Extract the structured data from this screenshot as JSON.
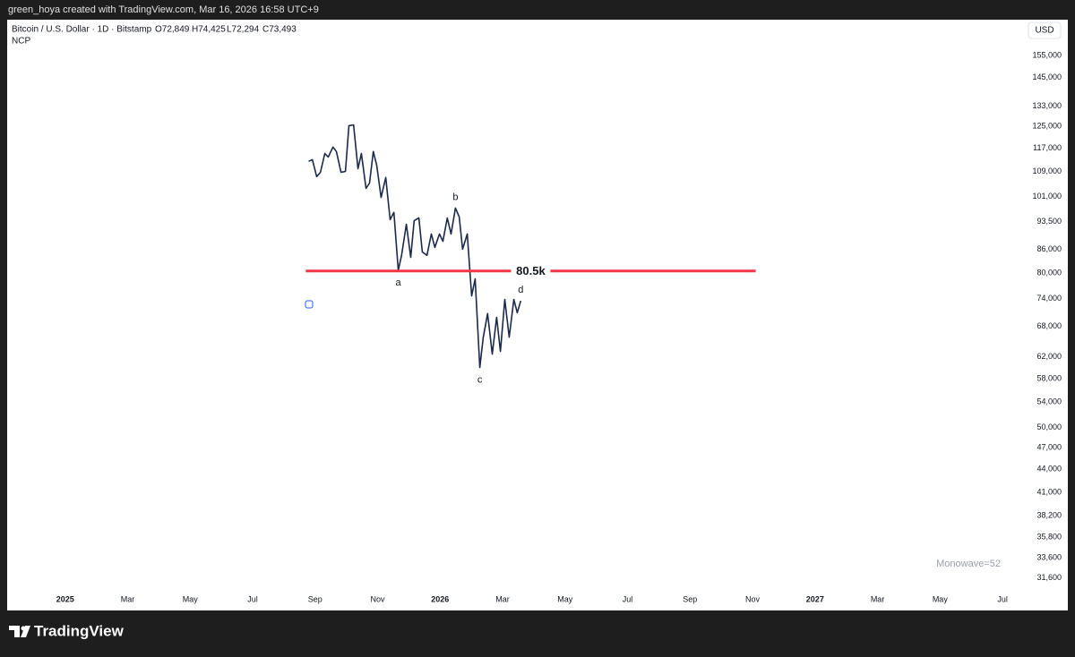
{
  "header": {
    "attribution": "green_hoya created with TradingView.com, Mar 16, 2026 16:58 UTC+9"
  },
  "footer": {
    "brand": "TradingView"
  },
  "chart_data": {
    "type": "line",
    "symbol": "Bitcoin / U.S. Dollar · 1D · Bitstamp",
    "ohlc": [
      "O72,849",
      "H74,425",
      "L72,294",
      "C73,493"
    ],
    "indicator": "NCP",
    "currency": "USD",
    "watermark": "Monowave=52",
    "log_scale": true,
    "grid": false,
    "xlim": [
      -1.8,
      30.6
    ],
    "xticks": [
      {
        "value": 0,
        "label": "2025"
      },
      {
        "value": 2,
        "label": "Mar"
      },
      {
        "value": 4,
        "label": "May"
      },
      {
        "value": 6,
        "label": "Jul"
      },
      {
        "value": 8,
        "label": "Sep"
      },
      {
        "value": 10,
        "label": "Nov"
      },
      {
        "value": 12,
        "label": "2026"
      },
      {
        "value": 14,
        "label": "Mar"
      },
      {
        "value": 16,
        "label": "May"
      },
      {
        "value": 18,
        "label": "Jul"
      },
      {
        "value": 20,
        "label": "Sep"
      },
      {
        "value": 22,
        "label": "Nov"
      },
      {
        "value": 24,
        "label": "2027"
      },
      {
        "value": 26,
        "label": "Mar"
      },
      {
        "value": 28,
        "label": "May"
      },
      {
        "value": 30,
        "label": "Jul"
      }
    ],
    "ylim": [
      30400,
      173000
    ],
    "yticks": [
      {
        "value": 155000,
        "label": "155,000"
      },
      {
        "value": 145000,
        "label": "145,000"
      },
      {
        "value": 133000,
        "label": "133,000"
      },
      {
        "value": 125000,
        "label": "125,000"
      },
      {
        "value": 117000,
        "label": "117,000"
      },
      {
        "value": 109000,
        "label": "109,000"
      },
      {
        "value": 101000,
        "label": "101,000"
      },
      {
        "value": 93500,
        "label": "93,500"
      },
      {
        "value": 86000,
        "label": "86,000"
      },
      {
        "value": 80000,
        "label": "80,000"
      },
      {
        "value": 74000,
        "label": "74,000"
      },
      {
        "value": 68000,
        "label": "68,000"
      },
      {
        "value": 62000,
        "label": "62,000"
      },
      {
        "value": 58000,
        "label": "58,000"
      },
      {
        "value": 54000,
        "label": "54,000"
      },
      {
        "value": 50000,
        "label": "50,000"
      },
      {
        "value": 47000,
        "label": "47,000"
      },
      {
        "value": 44000,
        "label": "44,000"
      },
      {
        "value": 41000,
        "label": "41,000"
      },
      {
        "value": 38200,
        "label": "38,200"
      },
      {
        "value": 35800,
        "label": "35,800"
      },
      {
        "value": 33600,
        "label": "33,600"
      },
      {
        "value": 31600,
        "label": "31,600"
      }
    ],
    "series": [
      {
        "color": "#1b2a4a",
        "x": [
          7.79,
          7.91,
          8.05,
          8.17,
          8.31,
          8.42,
          8.57,
          8.68,
          8.83,
          8.97,
          9.08,
          9.23,
          9.37,
          9.48,
          9.63,
          9.74,
          9.86,
          9.97,
          10.11,
          10.26,
          10.4,
          10.52,
          10.66,
          10.77,
          10.92,
          11.06,
          11.17,
          11.32,
          11.43,
          11.58,
          11.72,
          11.83,
          11.98,
          12.09,
          12.23,
          12.35,
          12.49,
          12.61,
          12.72,
          12.87,
          13.01,
          13.12,
          13.27,
          13.38,
          13.52,
          13.67,
          13.81,
          13.93,
          14.07,
          14.21,
          14.36,
          14.47,
          14.58
        ],
        "values": [
          112400,
          113000,
          107300,
          108700,
          115100,
          113900,
          117400,
          115800,
          108700,
          109000,
          125300,
          125600,
          109900,
          115100,
          103500,
          105200,
          115800,
          111100,
          100700,
          107000,
          94100,
          96200,
          80600,
          84600,
          92800,
          83900,
          93800,
          94600,
          85300,
          84400,
          90100,
          86500,
          90100,
          88100,
          94600,
          90100,
          97500,
          94900,
          86000,
          90100,
          74600,
          78600,
          60000,
          65700,
          70700,
          62500,
          69900,
          63000,
          73800,
          65800,
          73800,
          70900,
          73500
        ]
      }
    ],
    "hline": {
      "value": 80500,
      "label": "80.5k",
      "color": "#f23645",
      "x": [
        7.7,
        22.1
      ]
    },
    "annotations": [
      {
        "text": "a",
        "x": 10.66,
        "y": 80600,
        "placement": "below"
      },
      {
        "text": "b",
        "x": 12.49,
        "y": 97500,
        "placement": "above"
      },
      {
        "text": "c",
        "x": 13.27,
        "y": 60000,
        "placement": "below"
      },
      {
        "text": "d",
        "x": 14.58,
        "y": 73500,
        "placement": "above"
      }
    ]
  }
}
